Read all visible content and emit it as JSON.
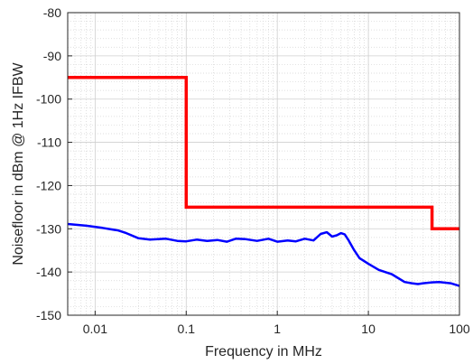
{
  "chart_data": {
    "type": "line",
    "xlabel": "Frequency in MHz",
    "ylabel": "Noisefloor in dBm @ 1Hz IFBW",
    "x_scale": "log",
    "xlim": [
      0.005,
      100
    ],
    "ylim": [
      -150,
      -80
    ],
    "grid": true,
    "minor_grid": true,
    "x_ticks": [
      {
        "value": 0.01,
        "label": "0.01"
      },
      {
        "value": 0.1,
        "label": "0.1"
      },
      {
        "value": 1,
        "label": "1"
      },
      {
        "value": 10,
        "label": "10"
      },
      {
        "value": 100,
        "label": "100"
      }
    ],
    "y_ticks": [
      {
        "value": -80,
        "label": "-80"
      },
      {
        "value": -90,
        "label": "-90"
      },
      {
        "value": -100,
        "label": "-100"
      },
      {
        "value": -110,
        "label": "-110"
      },
      {
        "value": -120,
        "label": "-120"
      },
      {
        "value": -130,
        "label": "-130"
      },
      {
        "value": -140,
        "label": "-140"
      },
      {
        "value": -150,
        "label": "-150"
      }
    ],
    "series": [
      {
        "color": "#ff0000",
        "step": true,
        "x": [
          0.005,
          0.1,
          0.1,
          50,
          50,
          100
        ],
        "y": [
          -95,
          -95,
          -125,
          -125,
          -130,
          -130
        ]
      },
      {
        "color": "#0000ff",
        "x": [
          0.005,
          0.008,
          0.012,
          0.018,
          0.022,
          0.03,
          0.04,
          0.06,
          0.08,
          0.1,
          0.13,
          0.17,
          0.22,
          0.28,
          0.35,
          0.45,
          0.6,
          0.8,
          1.0,
          1.3,
          1.6,
          2.0,
          2.5,
          3.0,
          3.5,
          4.0,
          4.5,
          5.0,
          5.5,
          6.0,
          7.0,
          8.0,
          10,
          13,
          18,
          25,
          30,
          35,
          40,
          50,
          60,
          80,
          100
        ],
        "y": [
          -128.9,
          -129.3,
          -129.8,
          -130.4,
          -131.0,
          -132.2,
          -132.5,
          -132.3,
          -132.8,
          -132.9,
          -132.5,
          -132.8,
          -132.6,
          -133.0,
          -132.3,
          -132.4,
          -132.8,
          -132.3,
          -133.0,
          -132.7,
          -132.9,
          -132.3,
          -132.7,
          -131.2,
          -130.8,
          -131.8,
          -131.5,
          -131.0,
          -131.3,
          -132.5,
          -135.0,
          -136.8,
          -138.1,
          -139.5,
          -140.5,
          -142.3,
          -142.6,
          -142.8,
          -142.6,
          -142.4,
          -142.3,
          -142.6,
          -143.2
        ]
      }
    ]
  }
}
